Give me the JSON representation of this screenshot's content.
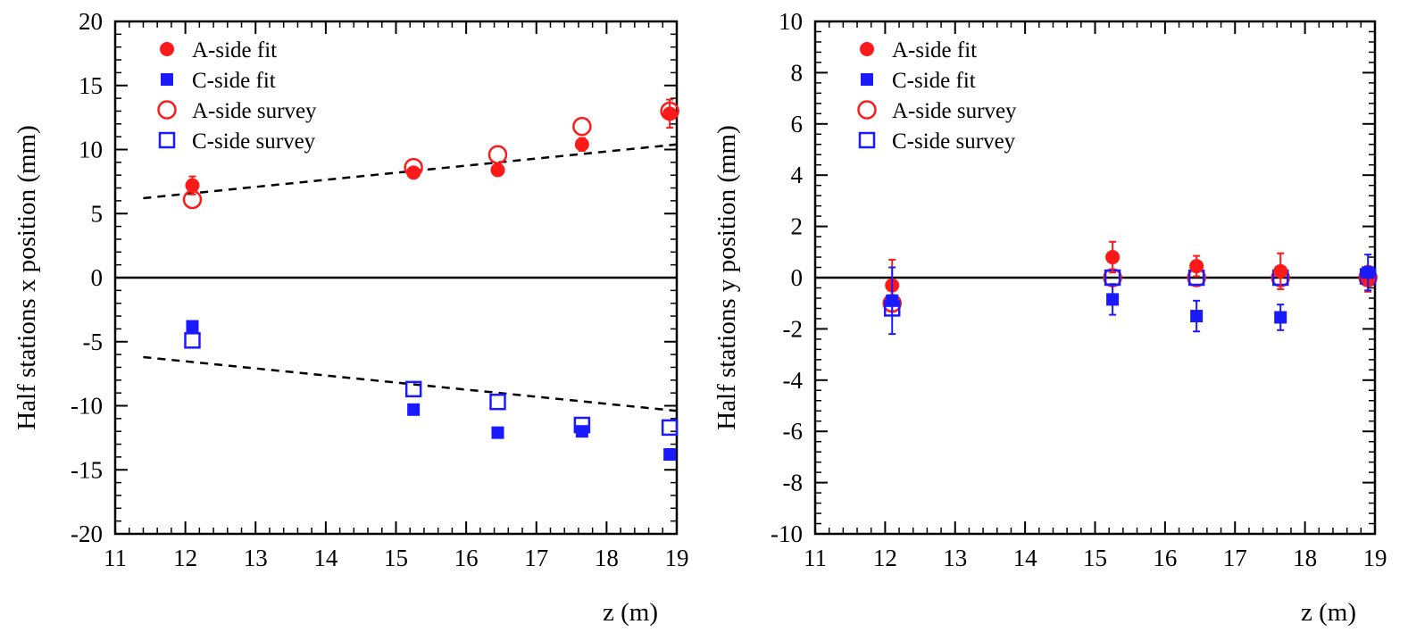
{
  "colors": {
    "a_side": "#ff1a1a",
    "c_side": "#1a1aff",
    "axis": "#000000"
  },
  "chart_data": [
    {
      "type": "scatter",
      "xlabel": "z  (m)",
      "ylabel": "Half stations x position (mm)",
      "xlim": [
        11,
        19
      ],
      "ylim": [
        -20,
        20
      ],
      "xticks": [
        "11",
        "12",
        "13",
        "14",
        "15",
        "16",
        "17",
        "18",
        "19"
      ],
      "yticks": [
        "-20",
        "-15",
        "-10",
        "-5",
        "0",
        "5",
        "10",
        "15",
        "20"
      ],
      "zero_line": true,
      "legend_position": "top-left",
      "series": [
        {
          "name": "A-side fit",
          "marker": "filled-circle",
          "color": "a_side",
          "points": [
            {
              "x": 12.1,
              "y": 7.2,
              "err": 0.7
            },
            {
              "x": 15.25,
              "y": 8.2,
              "err": 0.3
            },
            {
              "x": 16.45,
              "y": 8.4,
              "err": 0.3
            },
            {
              "x": 17.65,
              "y": 10.4,
              "err": 0.5
            },
            {
              "x": 18.9,
              "y": 12.8,
              "err": 1.1
            }
          ]
        },
        {
          "name": "C-side fit",
          "marker": "filled-square",
          "color": "c_side",
          "points": [
            {
              "x": 12.1,
              "y": -3.8,
              "err": 0
            },
            {
              "x": 15.25,
              "y": -10.3,
              "err": 0
            },
            {
              "x": 16.45,
              "y": -12.1,
              "err": 0
            },
            {
              "x": 17.65,
              "y": -12.0,
              "err": 0
            },
            {
              "x": 18.9,
              "y": -13.8,
              "err": 0
            }
          ]
        },
        {
          "name": "A-side survey",
          "marker": "open-circle",
          "color": "a_side",
          "points": [
            {
              "x": 12.1,
              "y": 6.1
            },
            {
              "x": 15.25,
              "y": 8.6
            },
            {
              "x": 16.45,
              "y": 9.6
            },
            {
              "x": 17.65,
              "y": 11.8
            },
            {
              "x": 18.9,
              "y": 13.0
            }
          ]
        },
        {
          "name": "C-side survey",
          "marker": "open-square",
          "color": "c_side",
          "points": [
            {
              "x": 12.1,
              "y": -4.9
            },
            {
              "x": 15.25,
              "y": -8.7
            },
            {
              "x": 16.45,
              "y": -9.7
            },
            {
              "x": 17.65,
              "y": -11.5
            },
            {
              "x": 18.9,
              "y": -11.7
            }
          ]
        }
      ],
      "dashed_lines": [
        {
          "x": [
            11.4,
            19.0
          ],
          "y": [
            6.2,
            10.4
          ]
        },
        {
          "x": [
            11.4,
            19.0
          ],
          "y": [
            -6.2,
            -10.4
          ]
        }
      ]
    },
    {
      "type": "scatter",
      "xlabel": "z  (m)",
      "ylabel": "Half stations y position (mm)",
      "xlim": [
        11,
        19
      ],
      "ylim": [
        -10,
        10
      ],
      "xticks": [
        "11",
        "12",
        "13",
        "14",
        "15",
        "16",
        "17",
        "18",
        "19"
      ],
      "yticks": [
        "-10",
        "-8",
        "-6",
        "-4",
        "-2",
        "0",
        "2",
        "4",
        "6",
        "8",
        "10"
      ],
      "zero_line": true,
      "legend_position": "top-left",
      "series": [
        {
          "name": "A-side fit",
          "marker": "filled-circle",
          "color": "a_side",
          "points": [
            {
              "x": 12.1,
              "y": -0.3,
              "err": 1.0
            },
            {
              "x": 15.25,
              "y": 0.8,
              "err": 0.6
            },
            {
              "x": 16.45,
              "y": 0.45,
              "err": 0.4
            },
            {
              "x": 17.65,
              "y": 0.25,
              "err": 0.7
            },
            {
              "x": 18.9,
              "y": -0.05,
              "err": 0.5
            }
          ]
        },
        {
          "name": "C-side fit",
          "marker": "filled-square",
          "color": "c_side",
          "points": [
            {
              "x": 12.1,
              "y": -0.9,
              "err": 1.3
            },
            {
              "x": 15.25,
              "y": -0.85,
              "err": 0.6
            },
            {
              "x": 16.45,
              "y": -1.5,
              "err": 0.6
            },
            {
              "x": 17.65,
              "y": -1.55,
              "err": 0.5
            },
            {
              "x": 18.9,
              "y": 0.2,
              "err": 0.7
            }
          ]
        },
        {
          "name": "A-side survey",
          "marker": "open-circle",
          "color": "a_side",
          "points": [
            {
              "x": 12.1,
              "y": -1.0
            },
            {
              "x": 15.25,
              "y": 0.0
            },
            {
              "x": 16.45,
              "y": 0.0
            },
            {
              "x": 17.65,
              "y": 0.0
            },
            {
              "x": 18.9,
              "y": 0.0
            }
          ]
        },
        {
          "name": "C-side survey",
          "marker": "open-square",
          "color": "c_side",
          "points": [
            {
              "x": 12.1,
              "y": -1.2
            },
            {
              "x": 15.25,
              "y": 0.0
            },
            {
              "x": 16.45,
              "y": 0.0
            },
            {
              "x": 17.65,
              "y": 0.0
            },
            {
              "x": 18.9,
              "y": 0.05
            }
          ]
        }
      ],
      "dashed_lines": []
    }
  ]
}
